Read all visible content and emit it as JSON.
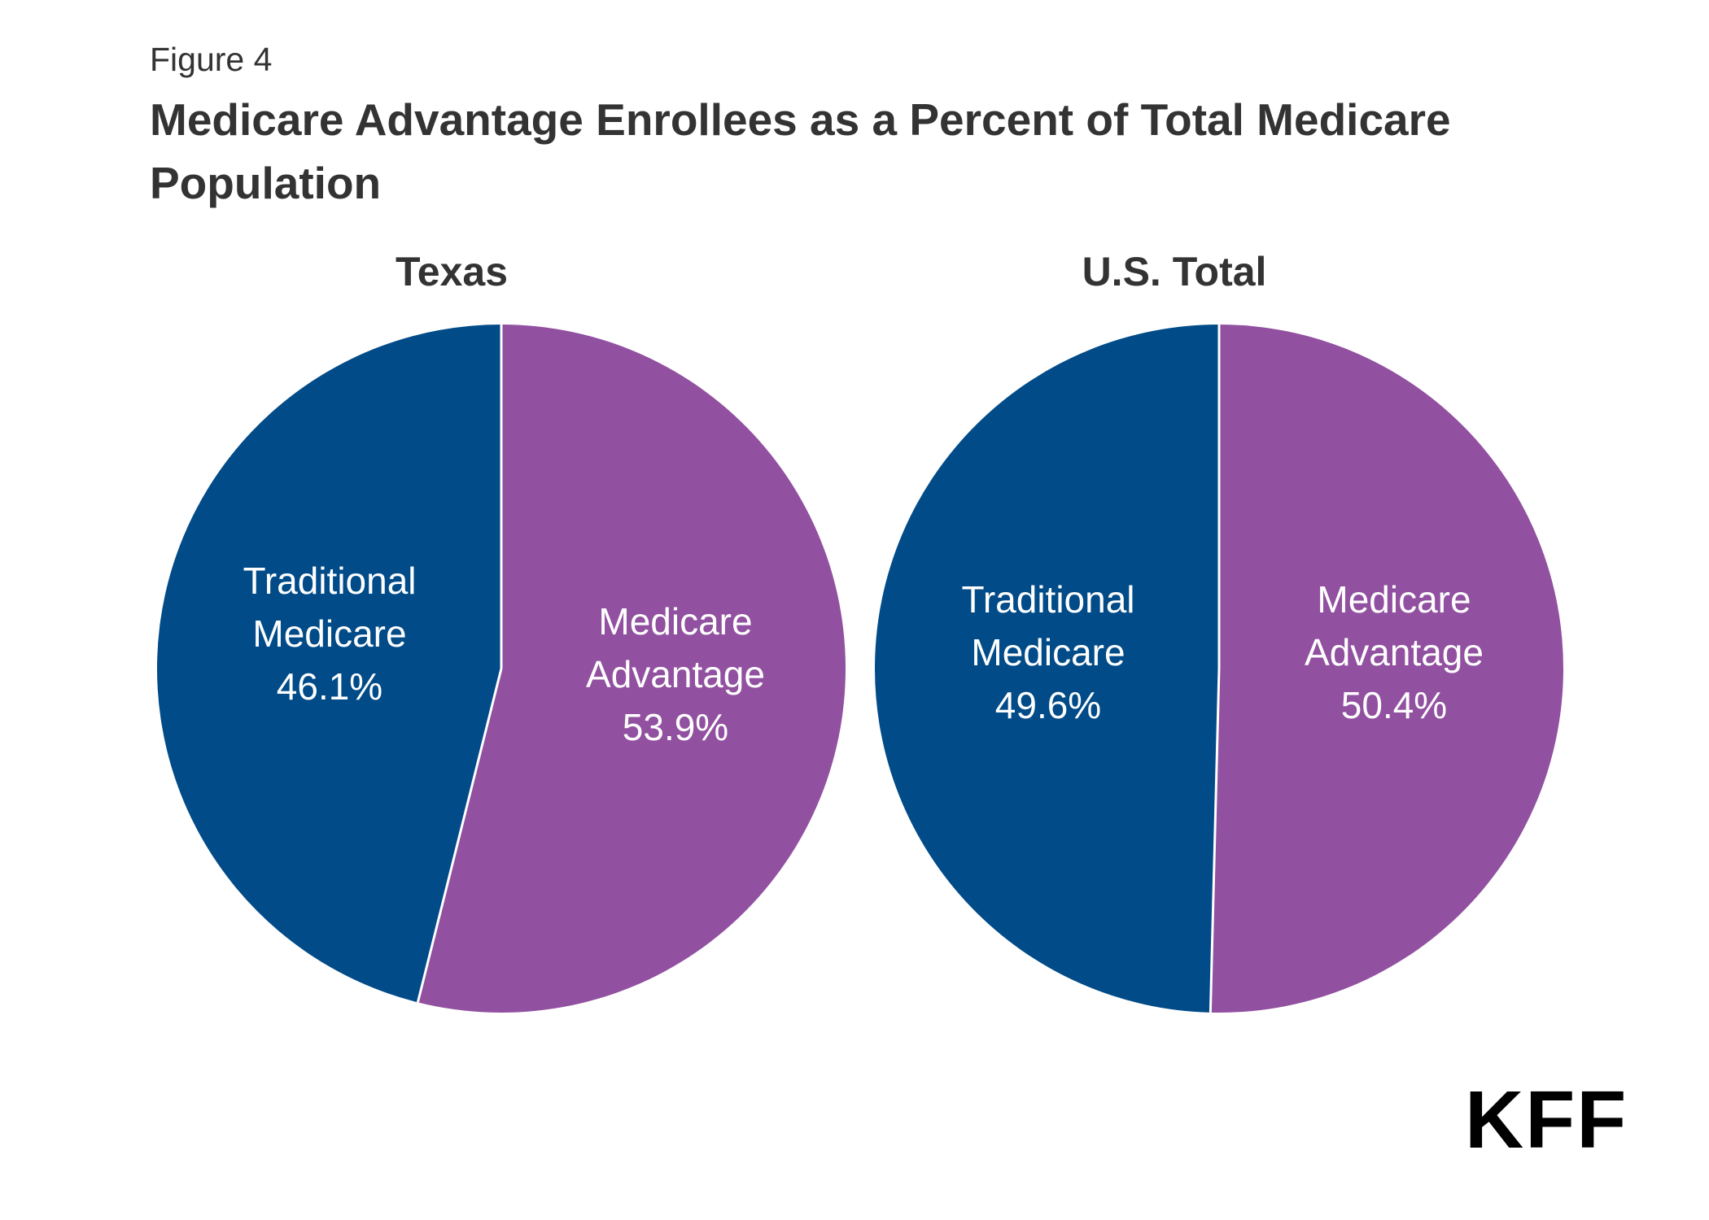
{
  "figure_label": "Figure 4",
  "title_line1": "Medicare Advantage Enrollees as a Percent of Total Medicare",
  "title_line2": "Population",
  "logo": "KFF",
  "colors": {
    "traditional": "#004b88",
    "advantage": "#9150a0",
    "separator": "#ffffff",
    "label": "#ffffff"
  },
  "chart_data": [
    {
      "type": "pie",
      "title": "Texas",
      "slices": [
        {
          "label_line1": "Traditional",
          "label_line2": "Medicare",
          "value": 46.1,
          "value_label": "46.1%",
          "color": "#004b88"
        },
        {
          "label_line1": "Medicare",
          "label_line2": "Advantage",
          "value": 53.9,
          "value_label": "53.9%",
          "color": "#9150a0"
        }
      ]
    },
    {
      "type": "pie",
      "title": "U.S. Total",
      "slices": [
        {
          "label_line1": "Traditional",
          "label_line2": "Medicare",
          "value": 49.6,
          "value_label": "49.6%",
          "color": "#004b88"
        },
        {
          "label_line1": "Medicare",
          "label_line2": "Advantage",
          "value": 50.4,
          "value_label": "50.4%",
          "color": "#9150a0"
        }
      ]
    }
  ]
}
